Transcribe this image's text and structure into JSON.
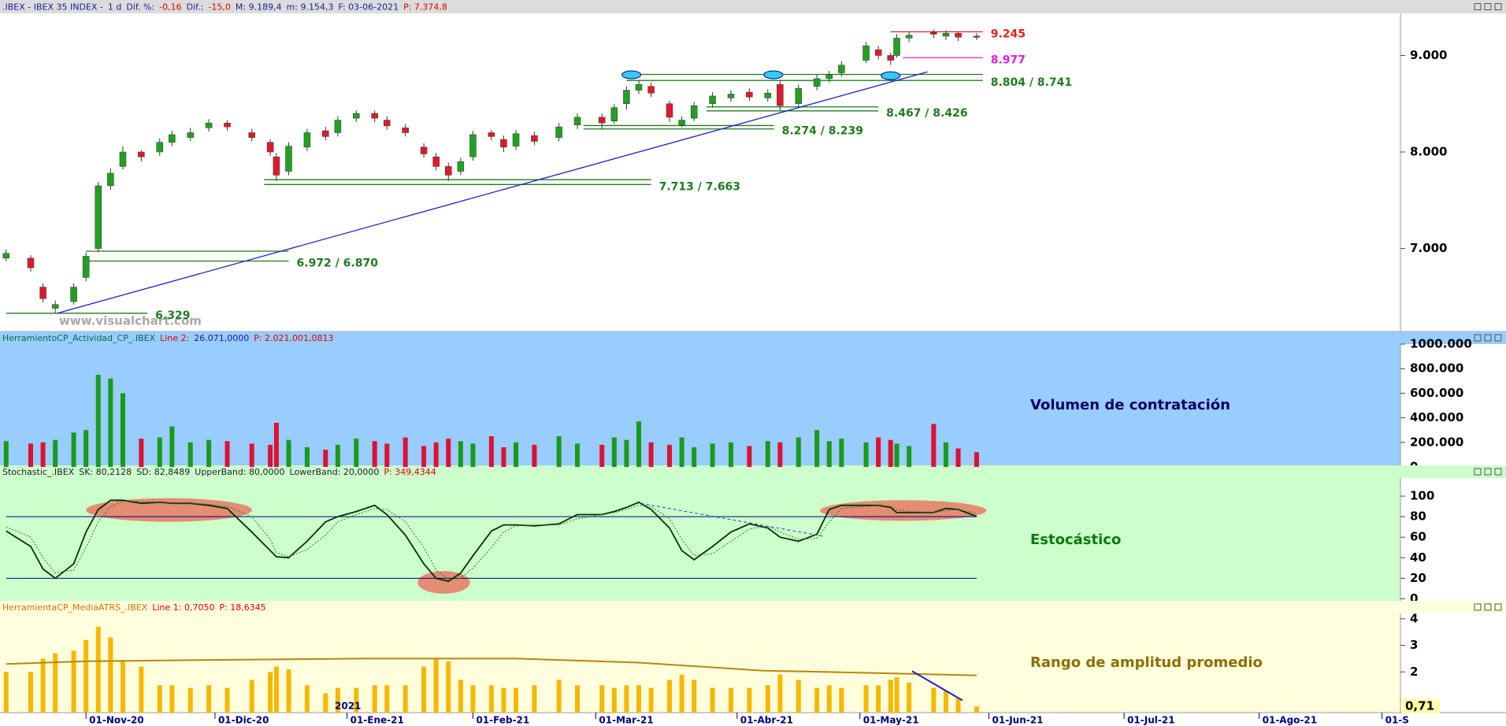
{
  "chart_data": [
    {
      "type": "candlestick",
      "header": [
        {
          "text": ".IBEX - IBEX 35 INDEX -",
          "color": "#1a1aa0"
        },
        {
          "text": "1 d",
          "color": "#1a1aa0"
        },
        {
          "text": "Dif. %:",
          "color": "#1a1aa0"
        },
        {
          "text": "-0,16",
          "color": "#e00000"
        },
        {
          "text": "Dif.:",
          "color": "#1a1aa0"
        },
        {
          "text": "-15,0",
          "color": "#e00000"
        },
        {
          "text": "M: 9.189,4",
          "color": "#1a1aa0"
        },
        {
          "text": "m: 9.154,3",
          "color": "#1a1aa0"
        },
        {
          "text": "F: 03-06-2021",
          "color": "#1a1aa0"
        },
        {
          "text": "P: 7.374,8",
          "color": "#e00000"
        }
      ],
      "background": "#ffffff",
      "header_background": "#dcdcdc",
      "up_color": "#22a022",
      "down_color": "#dd1a2a",
      "x": [
        -13,
        -9,
        -7,
        -5,
        -2,
        0,
        2,
        4,
        6,
        9,
        12,
        14,
        17,
        20,
        23,
        27,
        30,
        31,
        33,
        36,
        39,
        41,
        44,
        47,
        49,
        52,
        55,
        57,
        59,
        61,
        63,
        66,
        68,
        70,
        73,
        77,
        80,
        84,
        86,
        88,
        90,
        92,
        95,
        97,
        99,
        102,
        105,
        108,
        111,
        113,
        116,
        119,
        121,
        123,
        127,
        129,
        131,
        132,
        134,
        138,
        140,
        142,
        145
      ],
      "open": [
        6900,
        6900,
        6600,
        6380,
        6450,
        6700,
        7000,
        7650,
        7850,
        8000,
        8000,
        8100,
        8150,
        8250,
        8300,
        8200,
        8100,
        7950,
        7800,
        8050,
        8220,
        8200,
        8350,
        8400,
        8330,
        8250,
        8050,
        7950,
        7850,
        7800,
        7950,
        8200,
        8130,
        8060,
        8170,
        8150,
        8280,
        8360,
        8320,
        8500,
        8640,
        8680,
        8500,
        8280,
        8350,
        8500,
        8560,
        8620,
        8560,
        8700,
        8500,
        8680,
        8760,
        8820,
        8950,
        9060,
        9000,
        9000,
        9180,
        9240,
        9200,
        9230,
        9200
      ],
      "high": [
        6990,
        6930,
        6640,
        6460,
        6640,
        6960,
        7690,
        7830,
        8060,
        8020,
        8140,
        8220,
        8250,
        8340,
        8330,
        8240,
        8130,
        7990,
        8100,
        8240,
        8260,
        8370,
        8430,
        8430,
        8370,
        8290,
        8090,
        7990,
        7890,
        7940,
        8220,
        8230,
        8170,
        8230,
        8210,
        8300,
        8400,
        8400,
        8500,
        8680,
        8740,
        8720,
        8530,
        8370,
        8520,
        8620,
        8640,
        8660,
        8650,
        8740,
        8700,
        8800,
        8840,
        8940,
        9140,
        9100,
        9030,
        9220,
        9250,
        9270,
        9260,
        9245,
        9230
      ],
      "low": [
        6870,
        6760,
        6440,
        6329,
        6420,
        6660,
        6960,
        7610,
        7820,
        7900,
        7960,
        8060,
        8110,
        8210,
        8220,
        8110,
        7960,
        7700,
        7760,
        8010,
        8120,
        8160,
        8310,
        8310,
        8230,
        8160,
        7940,
        7810,
        7700,
        7760,
        7910,
        8120,
        8000,
        8020,
        8070,
        8110,
        8240,
        8239,
        8290,
        8440,
        8600,
        8570,
        8310,
        8260,
        8320,
        8460,
        8520,
        8530,
        8520,
        8426,
        8460,
        8640,
        8720,
        8780,
        8920,
        8960,
        8900,
        8977,
        9140,
        9180,
        9160,
        9150,
        9160
      ],
      "close": [
        6950,
        6800,
        6480,
        6420,
        6600,
        6920,
        7650,
        7780,
        8000,
        7950,
        8100,
        8180,
        8200,
        8300,
        8260,
        8150,
        8000,
        7760,
        8060,
        8200,
        8160,
        8330,
        8400,
        8350,
        8270,
        8200,
        7980,
        7850,
        7760,
        7900,
        8180,
        8160,
        8050,
        8190,
        8110,
        8260,
        8360,
        8300,
        8460,
        8640,
        8700,
        8610,
        8360,
        8330,
        8480,
        8580,
        8600,
        8570,
        8610,
        8480,
        8660,
        8760,
        8800,
        8900,
        9100,
        9000,
        8950,
        9180,
        9210,
        9220,
        9230,
        9190,
        9190
      ],
      "xlim": [
        -14,
        214
      ],
      "ylim": [
        6140,
        9436
      ],
      "yticks": [
        {
          "value": 9000,
          "label": "9.000"
        },
        {
          "value": 8000,
          "label": "8.000"
        },
        {
          "value": 7000,
          "label": "7.000"
        }
      ],
      "levels": [
        {
          "label": "9.245",
          "values": [
            9245
          ],
          "from": 131,
          "to": 146,
          "color": "#e02020"
        },
        {
          "label": "8.977",
          "values": [
            8977
          ],
          "from": 133,
          "to": 146,
          "color": "#e020e0"
        },
        {
          "label": "8.804 / 8.741",
          "values": [
            8804,
            8741
          ],
          "from": 88,
          "to": 146,
          "color": "#1f7a1f"
        },
        {
          "label": "8.467 / 8.426",
          "values": [
            8467,
            8426
          ],
          "from": 101,
          "to": 129,
          "color": "#1f7a1f"
        },
        {
          "label": "8.274 / 8.239",
          "values": [
            8274,
            8239
          ],
          "from": 81,
          "to": 112,
          "color": "#1f7a1f"
        },
        {
          "label": "7.713 / 7.663",
          "values": [
            7713,
            7663
          ],
          "from": 29,
          "to": 92,
          "color": "#1f7a1f"
        },
        {
          "label": "6.972 / 6.870",
          "values": [
            6972,
            6870
          ],
          "from": 0,
          "to": 33,
          "color": "#1f7a1f"
        },
        {
          "label": "6.329",
          "values": [
            6329
          ],
          "from": -13,
          "to": 10,
          "color": "#1f7a1f"
        }
      ],
      "trendline": {
        "x": [
          -4.7,
          137
        ],
        "y": [
          6329,
          8830
        ],
        "color": "#2020c0"
      },
      "markers": {
        "x": [
          88.8,
          111.9,
          131
        ],
        "y": [
          8800,
          8800,
          8790
        ],
        "color": "#33ccee"
      },
      "watermark": "www.visualchart.com"
    },
    {
      "type": "bar",
      "header": [
        {
          "text": "HerramientoCP_Actividad_CP_.IBEX",
          "color": "#00704a"
        },
        {
          "text": "Line 2:",
          "color": "#e00000"
        },
        {
          "text": "26.071,0000",
          "color": "#1a1aa0"
        },
        {
          "text": "P: 2.021.001,0813",
          "color": "#e00000"
        }
      ],
      "background": "#99ccff",
      "up_color": "#1a9a1a",
      "down_color": "#dd1133",
      "values": [
        210000,
        190000,
        200000,
        220000,
        280000,
        300000,
        750000,
        720000,
        600000,
        230000,
        240000,
        330000,
        200000,
        220000,
        210000,
        190000,
        180000,
        360000,
        220000,
        160000,
        140000,
        180000,
        230000,
        210000,
        190000,
        240000,
        170000,
        200000,
        230000,
        210000,
        190000,
        250000,
        160000,
        200000,
        180000,
        250000,
        190000,
        180000,
        240000,
        220000,
        370000,
        200000,
        180000,
        240000,
        160000,
        190000,
        200000,
        170000,
        210000,
        200000,
        240000,
        300000,
        210000,
        230000,
        200000,
        240000,
        220000,
        190000,
        170000,
        350000,
        200000,
        150000,
        120000
      ],
      "ylim": [
        0,
        1000000
      ],
      "yticks": [
        0,
        {
          "value": 200000,
          "label": "200.000"
        },
        {
          "value": 400000,
          "label": "400.000"
        },
        {
          "value": 600000,
          "label": "600.000"
        },
        {
          "value": 800000,
          "label": "800.000"
        },
        {
          "value": 1000000,
          "label": "1000.000"
        }
      ],
      "label": "Volumen de contratación",
      "label_color": "#000066"
    },
    {
      "type": "line",
      "header": [
        {
          "text": "Stochastic_.IBEX",
          "color": "#222222"
        },
        {
          "text": "SK: 80,2128",
          "color": "#222222"
        },
        {
          "text": "SD: 82,8489",
          "color": "#222222"
        },
        {
          "text": "UpperBand: 80,0000",
          "color": "#222222"
        },
        {
          "text": "LowerBand: 20,0000",
          "color": "#222222"
        },
        {
          "text": "P: 349,4344",
          "color": "#e00000"
        }
      ],
      "background": "#ccffcc",
      "series": [
        {
          "color": "#003300",
          "dash": false,
          "values": [
            66,
            51,
            29,
            20,
            34,
            65,
            87,
            96,
            96,
            93,
            94,
            93,
            93,
            91,
            88,
            65,
            47,
            41,
            40,
            56,
            75,
            80,
            85,
            91,
            82,
            62,
            34,
            20,
            17,
            25,
            42,
            66,
            72,
            72,
            71,
            73,
            82,
            82,
            85,
            89,
            94,
            87,
            69,
            47,
            38,
            51,
            65,
            73,
            69,
            60,
            56,
            63,
            87,
            91,
            91,
            91,
            89,
            84,
            84,
            84,
            88,
            87,
            80.2128
          ]
        },
        {
          "color": "#2a7a2a",
          "dash": true,
          "values": [
            70,
            60,
            40,
            25,
            28,
            50,
            75,
            90,
            95,
            95,
            94,
            93,
            93,
            92,
            90,
            80,
            58,
            45,
            41,
            48,
            62,
            75,
            82,
            88,
            87,
            75,
            50,
            28,
            19,
            20,
            30,
            50,
            65,
            71,
            72,
            72,
            78,
            82,
            84,
            87,
            91,
            90,
            78,
            58,
            42,
            44,
            56,
            68,
            71,
            65,
            58,
            59,
            75,
            88,
            90,
            91,
            90,
            87,
            85,
            84,
            86,
            87,
            82.8489
          ]
        }
      ],
      "bands": [
        80,
        20
      ],
      "band_color": "#000080",
      "highlights": [
        {
          "x": [
            0,
            27
          ],
          "y": [
            75,
            98
          ]
        },
        {
          "x": [
            54,
            62.5
          ],
          "y": [
            5,
            27
          ]
        },
        {
          "x": [
            119.5,
            146.6
          ],
          "y": [
            76,
            96
          ]
        }
      ],
      "highlight_color": "#e8806a",
      "divergence": {
        "x": [
          90.3,
          120
        ],
        "y": [
          93,
          61
        ],
        "color": "#2244cc"
      },
      "ylim": [
        -3.5,
        117.7
      ],
      "yticks": [
        0,
        20,
        40,
        60,
        80,
        100
      ],
      "label": "Estocástico",
      "label_color": "#0a7a0a"
    },
    {
      "type": "bar_line",
      "header": [
        {
          "text": "HerramientaCP_MediaATRS_.IBEX",
          "color": "#e07000"
        },
        {
          "text": "Line 1: 0,7050",
          "color": "#e00000"
        },
        {
          "text": "P: 18,6345",
          "color": "#e00000"
        }
      ],
      "background": "#ffffdd",
      "color": "#f5b800",
      "values": [
        2.0,
        2.0,
        2.5,
        2.7,
        2.8,
        3.2,
        3.7,
        3.3,
        2.4,
        2.2,
        1.5,
        1.5,
        1.4,
        1.5,
        1.4,
        1.7,
        2.0,
        2.2,
        2.1,
        1.5,
        1.2,
        1.4,
        1.4,
        1.5,
        1.5,
        1.5,
        2.2,
        2.5,
        2.4,
        1.7,
        1.5,
        1.5,
        1.4,
        1.4,
        1.5,
        1.7,
        1.5,
        1.5,
        1.4,
        1.5,
        1.5,
        1.4,
        1.7,
        1.9,
        1.7,
        1.4,
        1.4,
        1.4,
        1.5,
        1.9,
        1.7,
        1.4,
        1.5,
        1.4,
        1.5,
        1.5,
        1.7,
        1.8,
        1.6,
        1.4,
        1.3,
        1.0,
        0.705
      ],
      "line": {
        "x": [
          -13,
          0,
          20,
          45,
          70,
          90,
          110,
          130,
          145
        ],
        "y": [
          2.3,
          2.4,
          2.45,
          2.5,
          2.5,
          2.35,
          2.05,
          1.95,
          1.87
        ],
        "color": "#b8860b"
      },
      "trend": {
        "x": [
          134.5,
          142.7
        ],
        "y": [
          2.03,
          0.93
        ],
        "color": "#1a1acc"
      },
      "ylim": [
        0.47,
        4.2
      ],
      "yticks": [
        2,
        3,
        4
      ],
      "last_label": {
        "value": 0.71,
        "label": "0,71"
      },
      "label": "Rango de amplitud promedio",
      "label_color": "#8a7000",
      "annotation": {
        "text": "2021",
        "x": 40.5
      },
      "xticks": [
        {
          "value": 0,
          "label": "01-Nov-20"
        },
        {
          "value": 21,
          "label": "01-Dic-20"
        },
        {
          "value": 42.5,
          "label": "01-Ene-21"
        },
        {
          "value": 63,
          "label": "01-Feb-21"
        },
        {
          "value": 83,
          "label": "01-Mar-21"
        },
        {
          "value": 106,
          "label": "01-Abr-21"
        },
        {
          "value": 126,
          "label": "01-May-21"
        },
        {
          "value": 147,
          "label": "01-Jun-21"
        },
        {
          "value": 169,
          "label": "01-Jul-21"
        },
        {
          "value": 191,
          "label": "01-Ago-21"
        },
        {
          "value": 211,
          "label": "01-S"
        }
      ]
    }
  ]
}
